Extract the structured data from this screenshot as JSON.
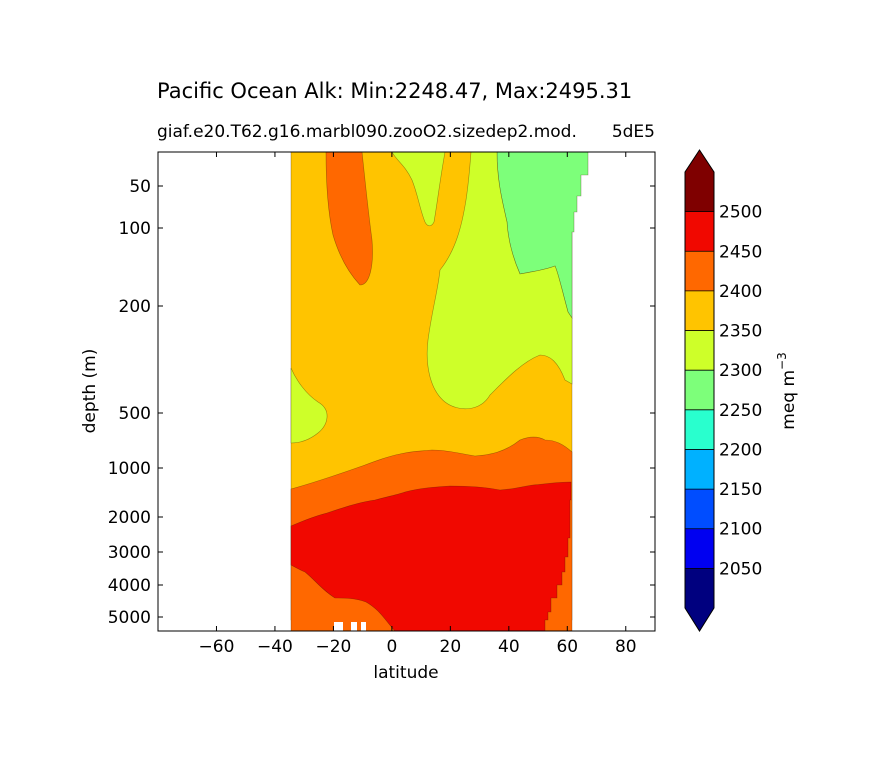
{
  "chart_data": {
    "type": "heatmap",
    "title": "Pacific Ocean Alk: Min:2248.47, Max:2495.31",
    "subtitle_left": "giaf.e20.T62.g16.marbl090.zooO2.sizedep2.mod.",
    "subtitle_right": "5dE5",
    "xlabel": "latitude",
    "ylabel": "depth (m)",
    "xlim": [
      -80,
      90
    ],
    "ylim_depth_m": [
      5500,
      20
    ],
    "y_scale": "nonlinear (log-like)",
    "x_ticks": [
      -60,
      -40,
      -20,
      0,
      20,
      40,
      60,
      80
    ],
    "x_tick_labels": [
      "−60",
      "−40",
      "−20",
      "0",
      "20",
      "40",
      "60",
      "80"
    ],
    "y_ticks": [
      50,
      100,
      200,
      500,
      1000,
      2000,
      3000,
      4000,
      5000
    ],
    "y_tick_labels": [
      "50",
      "100",
      "200",
      "500",
      "1000",
      "2000",
      "3000",
      "4000",
      "5000"
    ],
    "data_extent_lat": [
      -34,
      67
    ],
    "colorbar": {
      "label": "meq m",
      "label_superscript": "−3",
      "ticks": [
        "2050",
        "2100",
        "2150",
        "2200",
        "2250",
        "2300",
        "2350",
        "2400",
        "2450",
        "2500"
      ],
      "levels": [
        2000,
        2050,
        2100,
        2150,
        2200,
        2250,
        2300,
        2350,
        2400,
        2450,
        2500,
        2550
      ],
      "colors": [
        "#00007f",
        "#0000f1",
        "#004dff",
        "#00b1ff",
        "#29ffce",
        "#7dff7a",
        "#ceff29",
        "#ffc400",
        "#ff6800",
        "#f10800",
        "#7f0000"
      ],
      "extend": "both"
    },
    "regions": [
      {
        "value_band": "2450-2500",
        "color": "#f10800",
        "location": "deep water below ~1500 m, -34 to 62 lat"
      },
      {
        "value_band": "2400-2450",
        "color": "#ff6800",
        "location": "band ~1000-2000 m; south deep below 3500 m; shallow tongue near -15 lat"
      },
      {
        "value_band": "2350-2400",
        "color": "#ffc400",
        "location": "intermediate waters 20-1000 m"
      },
      {
        "value_band": "2300-2350",
        "color": "#ceff29",
        "location": "upper waters north of equator; south near -30 lat 400-700 m"
      },
      {
        "value_band": "2250-2300",
        "color": "#7dff7a",
        "location": "north Pacific upper 300 m, 45 to 67 lat"
      }
    ]
  }
}
